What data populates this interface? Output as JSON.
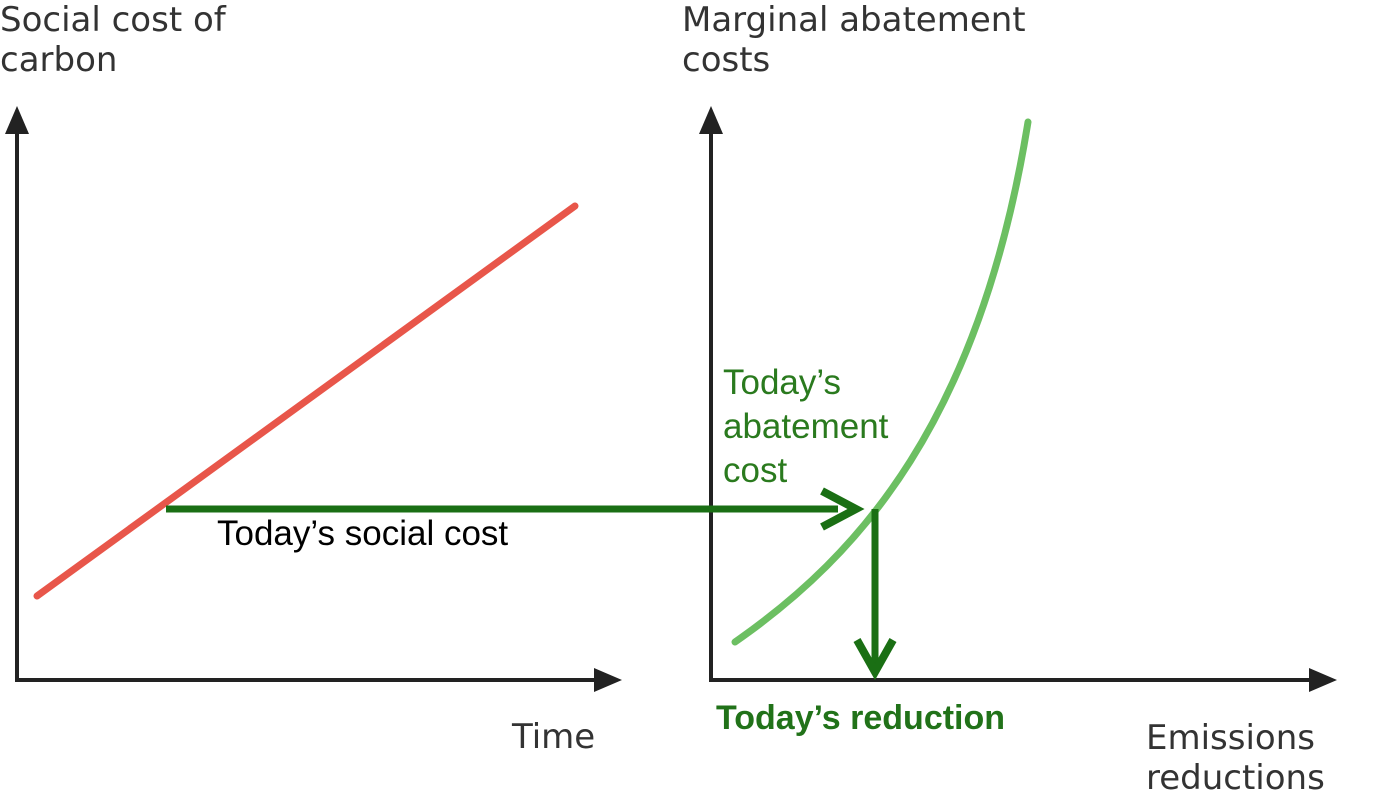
{
  "left_panel": {
    "y_axis_title_line1": "Social cost of",
    "y_axis_title_line2": "carbon",
    "x_axis_title": "Time"
  },
  "right_panel": {
    "y_axis_title_line1": "Marginal abatement",
    "y_axis_title_line2": "costs",
    "x_axis_title_line1": "Emissions",
    "x_axis_title_line2": "reductions"
  },
  "annotations": {
    "social_cost": "Today’s social cost",
    "abatement_line1": "Today’s",
    "abatement_line2": "abatement",
    "abatement_line3": "cost",
    "reduction": "Today’s reduction"
  },
  "colors": {
    "axis": "#222222",
    "social_cost_line": "#e8564a",
    "abatement_curve": "#6cbf62",
    "arrow": "#1a6f14",
    "annotation_green": "#2a7a1e"
  }
}
